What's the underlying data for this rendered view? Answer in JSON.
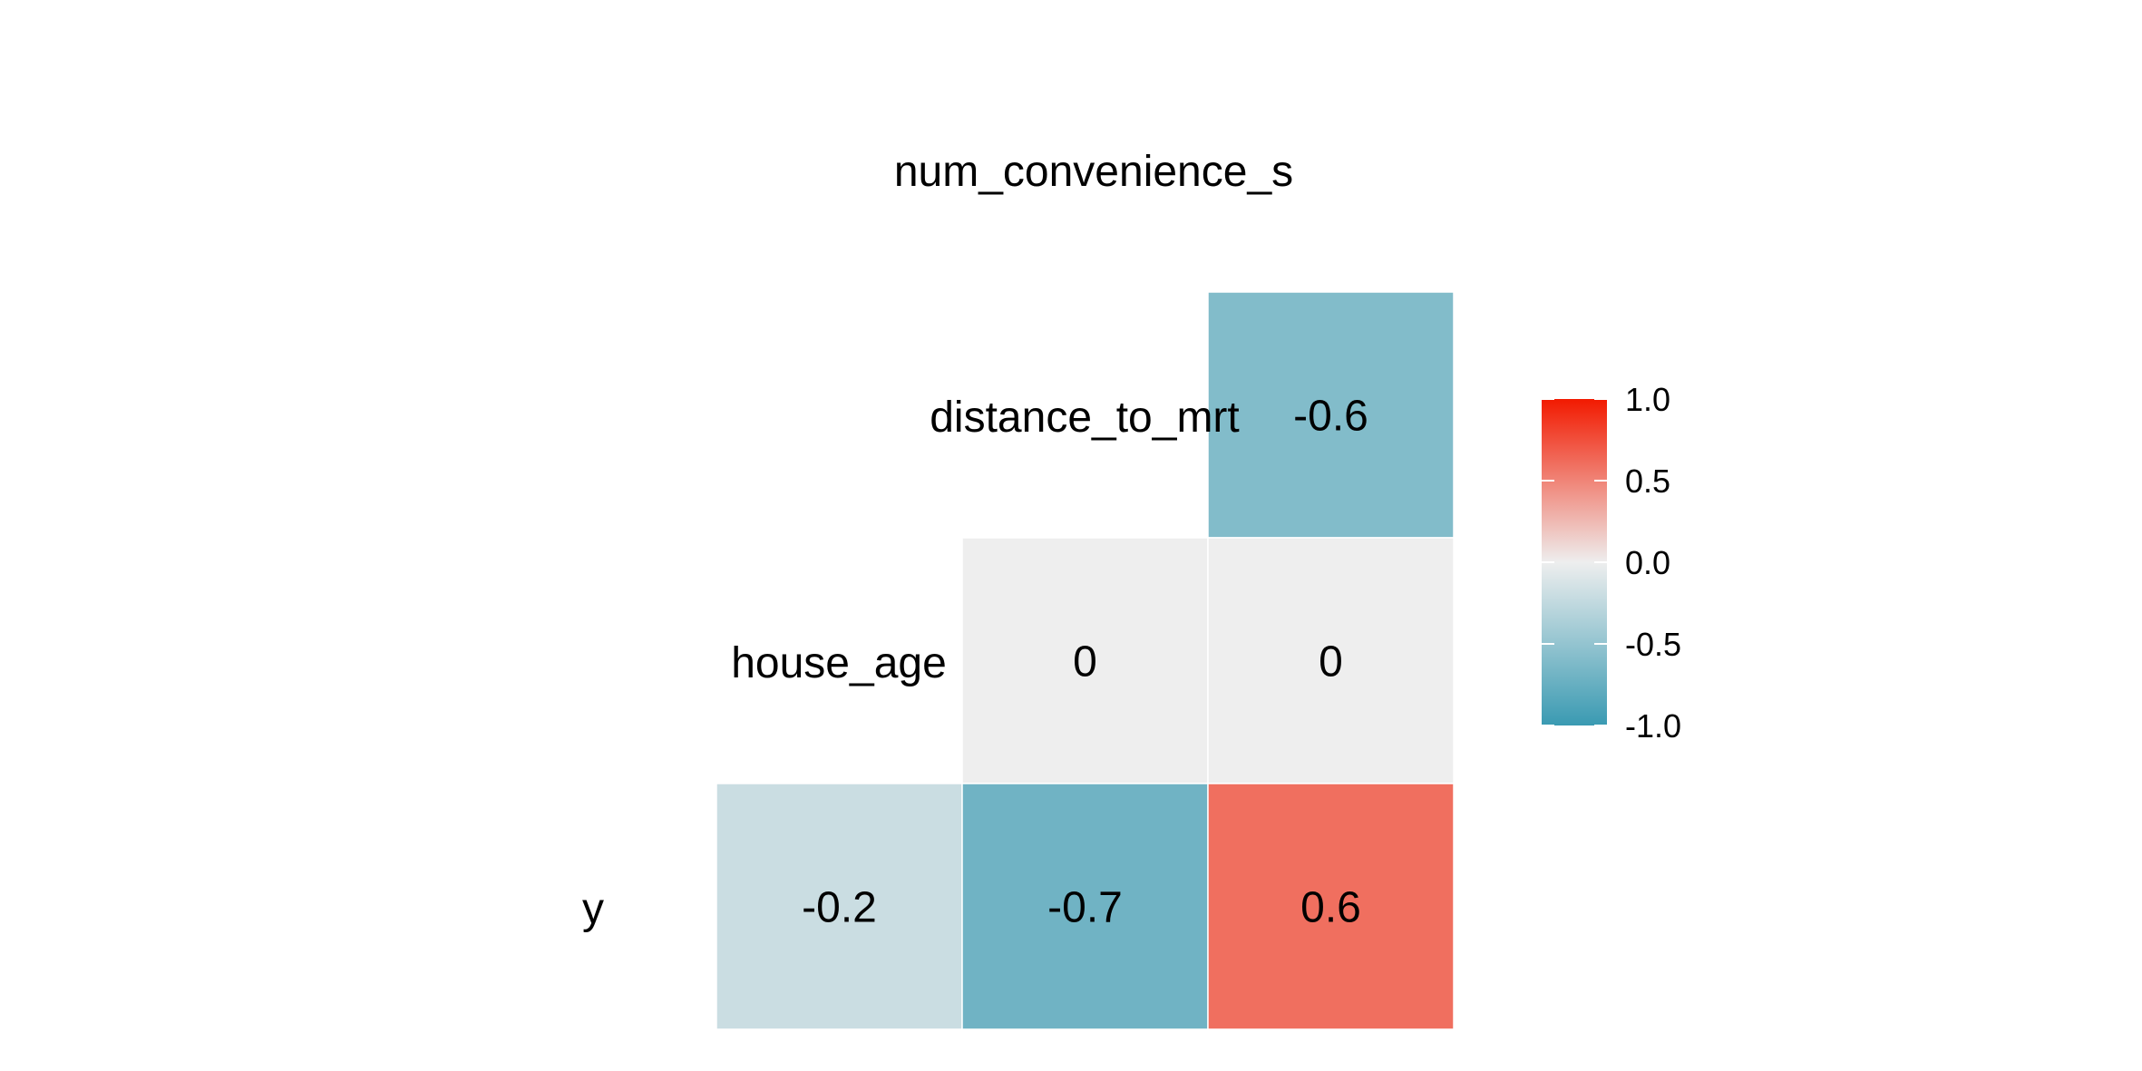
{
  "chart_data": {
    "type": "heatmap",
    "title": "",
    "variables": [
      "y",
      "house_age",
      "distance_to_mrt",
      "num_convenience_stores"
    ],
    "variable_labels": [
      "y",
      "house_age",
      "distance_to_mrt",
      "num_convenience_s"
    ],
    "cells": [
      {
        "row": "distance_to_mrt",
        "col": "num_convenience_stores",
        "value": -0.6,
        "label": "-0.6"
      },
      {
        "row": "house_age",
        "col": "distance_to_mrt",
        "value": 0,
        "label": "0"
      },
      {
        "row": "house_age",
        "col": "num_convenience_stores",
        "value": 0,
        "label": "0"
      },
      {
        "row": "y",
        "col": "house_age",
        "value": -0.2,
        "label": "-0.2"
      },
      {
        "row": "y",
        "col": "distance_to_mrt",
        "value": -0.7,
        "label": "-0.7"
      },
      {
        "row": "y",
        "col": "num_convenience_stores",
        "value": 0.6,
        "label": "0.6"
      }
    ],
    "color_scale": {
      "low": "#3a9ab2",
      "mid": "#eeeeee",
      "high": "#f21a00",
      "limits": [
        -1,
        1
      ]
    },
    "legend": {
      "position": "right",
      "ticks": [
        1.0,
        0.5,
        0.0,
        -0.5,
        -1.0
      ],
      "tick_labels": [
        "1.0",
        "0.5",
        "0.0",
        "-0.5",
        "-1.0"
      ]
    }
  }
}
